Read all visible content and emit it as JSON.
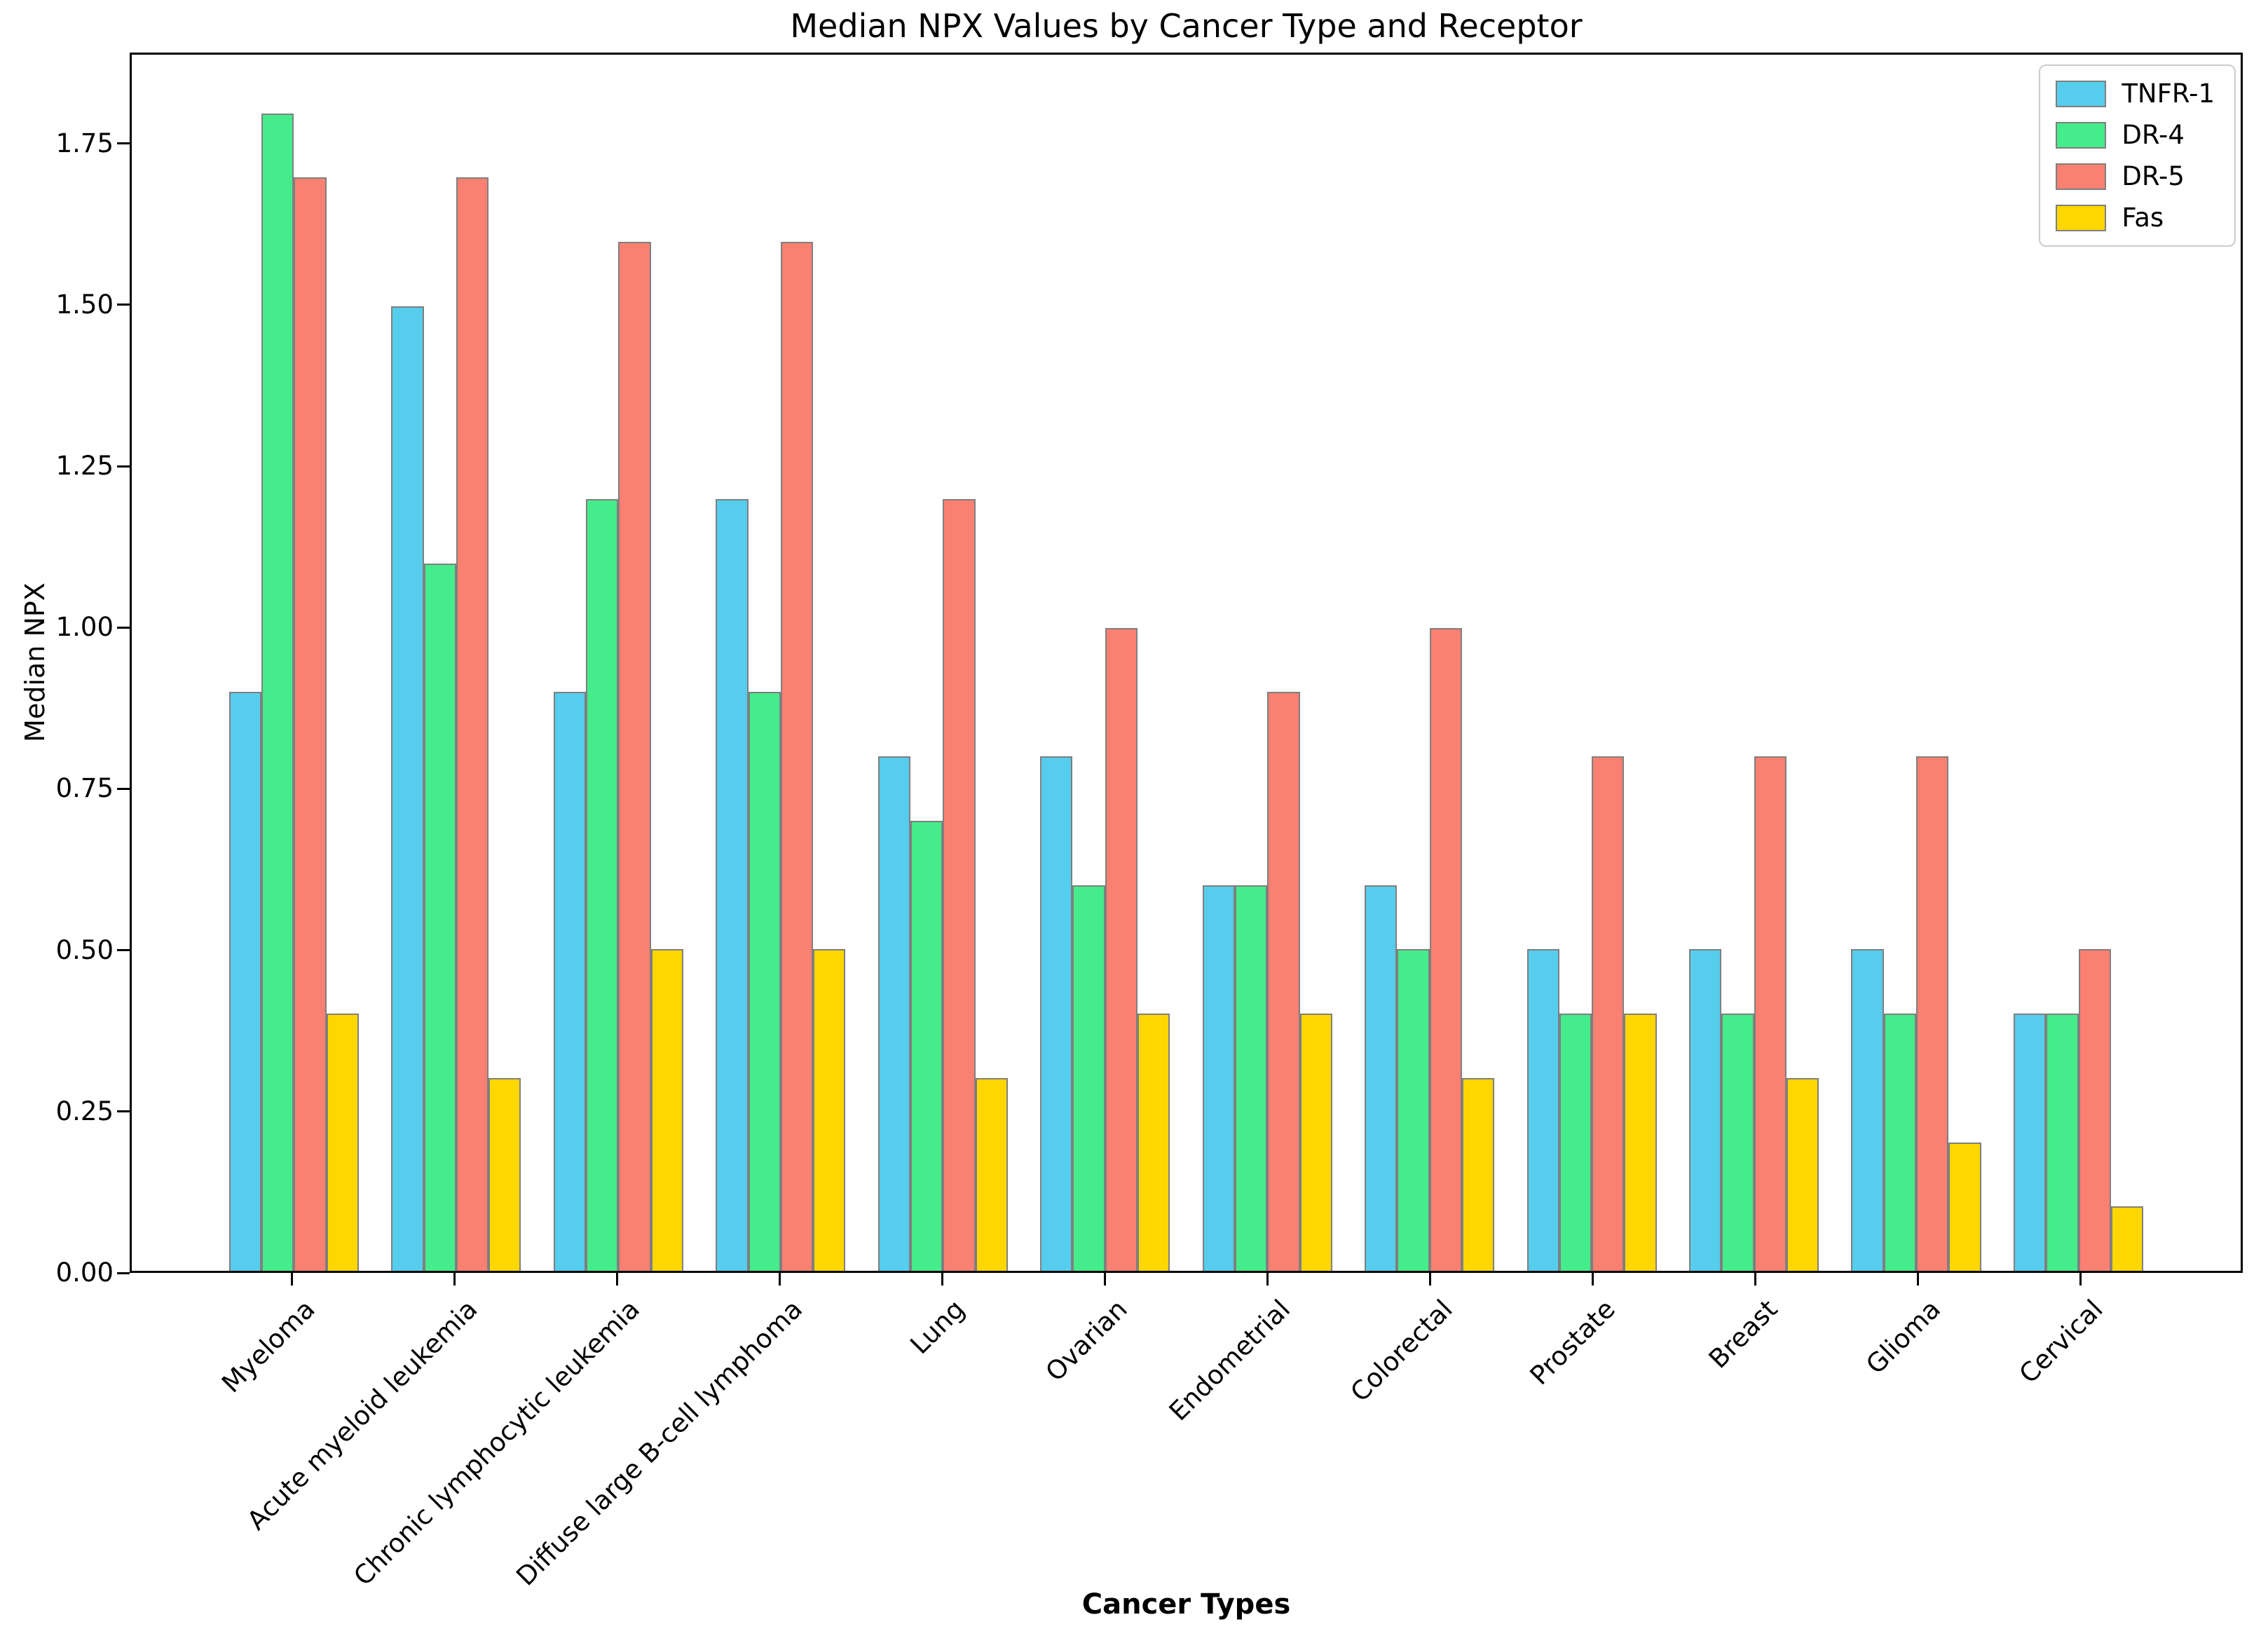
{
  "chart_data": {
    "type": "bar",
    "title": "Median NPX Values by Cancer Type and Receptor",
    "xlabel": "Cancer Types",
    "ylabel": "Median NPX",
    "categories": [
      "Myeloma",
      "Acute myeloid leukemia",
      "Chronic lymphocytic leukemia",
      "Diffuse large B-cell lymphoma",
      "Lung",
      "Ovarian",
      "Endometrial",
      "Colorectal",
      "Prostate",
      "Breast",
      "Glioma",
      "Cervical"
    ],
    "series": [
      {
        "name": "TNFR-1",
        "color": "#56CDEC",
        "values": [
          0.9,
          1.5,
          0.9,
          1.2,
          0.8,
          0.8,
          0.6,
          0.6,
          0.5,
          0.5,
          0.5,
          0.4
        ]
      },
      {
        "name": "DR-4",
        "color": "#45EC8B",
        "values": [
          1.8,
          1.1,
          1.2,
          0.9,
          0.7,
          0.6,
          0.6,
          0.5,
          0.4,
          0.4,
          0.4,
          0.4
        ]
      },
      {
        "name": "DR-5",
        "color": "#FA8072",
        "values": [
          1.7,
          1.7,
          1.6,
          1.6,
          1.2,
          1.0,
          0.9,
          1.0,
          0.8,
          0.8,
          0.8,
          0.5
        ]
      },
      {
        "name": "Fas",
        "color": "#FFD700",
        "values": [
          0.4,
          0.3,
          0.5,
          0.5,
          0.3,
          0.4,
          0.4,
          0.3,
          0.4,
          0.3,
          0.2,
          0.1
        ]
      }
    ],
    "ytick_labels": [
      "0.00",
      "0.25",
      "0.50",
      "0.75",
      "1.00",
      "1.25",
      "1.50",
      "1.75"
    ],
    "ytick_values": [
      0,
      0.25,
      0.5,
      0.75,
      1.0,
      1.25,
      1.5,
      1.75
    ],
    "ylim": [
      0,
      1.891
    ],
    "legend_position": "upper right",
    "grid": false,
    "bar_edge_color": "#7f7f7f",
    "axis_color": "#000000"
  }
}
